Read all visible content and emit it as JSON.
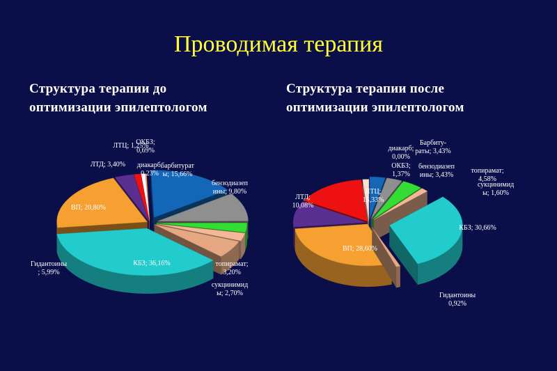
{
  "title": "Проводимая терапия",
  "chart_data": [
    {
      "type": "pie",
      "title": "Структура  терапии  до\nоптимизации эпилептологом",
      "slices": [
        {
          "name": "барбитураты",
          "value": 15.66,
          "label_lines": [
            "барбитурат",
            "ы; 15,66%"
          ],
          "color": "#1466b8"
        },
        {
          "name": "бензодиазепины",
          "value": 9.8,
          "label_lines": [
            "бензодиазеп",
            "ины; 9,80%"
          ],
          "color": "#8f8f8f"
        },
        {
          "name": "топирамат",
          "value": 3.2,
          "label_lines": [
            "топирамат;",
            "3,20%"
          ],
          "color": "#33dd33"
        },
        {
          "name": "сукцинимиды",
          "value": 2.7,
          "label_lines": [
            "сукцинимид",
            "ы; 2,70%"
          ],
          "color": "#f4b896"
        },
        {
          "name": "Гидантоины",
          "value": 5.99,
          "label_lines": [
            "Гидантоины",
            "; 5,99%"
          ],
          "color": "#e6a882"
        },
        {
          "name": "КБЗ",
          "value": 36.16,
          "label_lines": [
            "КБЗ; 36,16%"
          ],
          "color": "#22cccc"
        },
        {
          "name": "ВП",
          "value": 20.8,
          "label_lines": [
            "ВП; 20,80%"
          ],
          "color": "#f5a030"
        },
        {
          "name": "ЛТД",
          "value": 3.4,
          "label_lines": [
            "ЛТД; 3,40%"
          ],
          "color": "#5b2e91"
        },
        {
          "name": "ЛТЦ",
          "value": 1.25,
          "label_lines": [
            "ЛТЦ; 1,25%"
          ],
          "color": "#ee1111"
        },
        {
          "name": "ОКБЗ",
          "value": 0.69,
          "label_lines": [
            "ОКБЗ;",
            "0,69%"
          ],
          "color": "#ffffff"
        },
        {
          "name": "диакарб",
          "value": 0.23,
          "label_lines": [
            "диакарб,",
            "0,23%"
          ],
          "color": "#ff9966"
        }
      ]
    },
    {
      "type": "pie",
      "title": "Структура  терапии   после\nоптимизации эпилептологом",
      "slices": [
        {
          "name": "Барбитураты",
          "value": 3.43,
          "label_lines": [
            "Барбиту-",
            "раты; 3,43%"
          ],
          "color": "#1466b8"
        },
        {
          "name": "бензодиазепины",
          "value": 3.43,
          "label_lines": [
            "бензодиазеп",
            "ины; 3,43%"
          ],
          "color": "#8f8f8f"
        },
        {
          "name": "топирамат",
          "value": 4.58,
          "label_lines": [
            "топирамат;",
            "4,58%"
          ],
          "color": "#33dd33"
        },
        {
          "name": "сукцинимид",
          "value": 1.6,
          "label_lines": [
            "сукцинимид",
            "ы; 1,60%"
          ],
          "color": "#f4b896"
        },
        {
          "name": "КБЗ",
          "value": 30.66,
          "label_lines": [
            "КБЗ; 30,66%"
          ],
          "color": "#22cccc"
        },
        {
          "name": "Гидантоины",
          "value": 0.92,
          "label_lines": [
            "Гидантоины",
            "0,92%"
          ],
          "color": "#e6a882"
        },
        {
          "name": "ВП",
          "value": 28.6,
          "label_lines": [
            "ВП; 28,60%"
          ],
          "color": "#f5a030"
        },
        {
          "name": "ЛТД",
          "value": 10.08,
          "label_lines": [
            "ЛТД;",
            "10,08%"
          ],
          "color": "#5b2e91"
        },
        {
          "name": "ЛТЦ",
          "value": 15.33,
          "label_lines": [
            "ЛТЦ;",
            "15,33%"
          ],
          "color": "#ee1111"
        },
        {
          "name": "диакарб",
          "value": 0.0,
          "label_lines": [
            "диакарб;",
            "0,00%"
          ],
          "color": "#ff9966"
        },
        {
          "name": "ОКБЗ",
          "value": 1.37,
          "label_lines": [
            "ОКБЗ;",
            "1,37%"
          ],
          "color": "#ffe0d0"
        }
      ]
    }
  ]
}
